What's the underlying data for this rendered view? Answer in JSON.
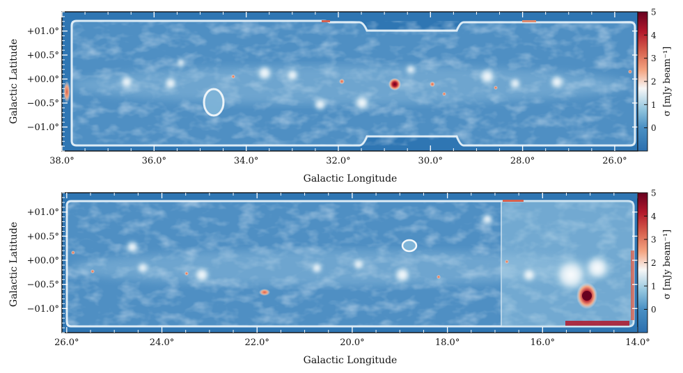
{
  "chart_data": [
    {
      "type": "heatmap",
      "title": "",
      "xlabel": "Galactic Longitude",
      "ylabel": "Galactic Latitude",
      "xlim": [
        38.0,
        25.5
      ],
      "ylim": [
        -1.5,
        1.4
      ],
      "x_ticks": [
        38.0,
        36.0,
        34.0,
        32.0,
        30.0,
        28.0,
        26.0
      ],
      "x_tick_labels": [
        "38.0°",
        "36.0°",
        "34.0°",
        "32.0°",
        "30.0°",
        "28.0°",
        "26.0°"
      ],
      "y_ticks": [
        1.0,
        0.5,
        0.0,
        -0.5,
        -1.0
      ],
      "y_tick_labels": [
        "+01.0°",
        "+00.5°",
        "+00.0°",
        "−00.5°",
        "−01.0°"
      ],
      "colorbar": {
        "label": "σ [mJy beam⁻¹]",
        "range": [
          -1,
          5
        ],
        "ticks": [
          -1,
          0,
          1,
          2,
          3,
          4,
          5
        ],
        "tick_labels": [
          "",
          "0",
          "1",
          "2",
          "3",
          "4",
          "5"
        ],
        "colormap": "RdBu_r",
        "colors": [
          "#2c6fae",
          "#4a90c4",
          "#92c5de",
          "#f7f7f7",
          "#f4a582",
          "#d6604d",
          "#b2182b",
          "#67001f"
        ]
      },
      "background_level": 0.5,
      "bright_sources": [
        {
          "l": 30.8,
          "b": -0.05,
          "sigma": 4.8
        },
        {
          "l": 34.8,
          "b": -0.45,
          "sigma": 2.3
        },
        {
          "l": 31.8,
          "b": -0.02,
          "sigma": 3.6
        },
        {
          "l": 29.9,
          "b": -0.05,
          "sigma": 3.6
        },
        {
          "l": 34.3,
          "b": 0.15,
          "sigma": 3.0
        },
        {
          "l": 37.95,
          "b": -0.15,
          "sigma": 3.5
        },
        {
          "l": 25.8,
          "b": 0.2,
          "sigma": 3.2
        }
      ]
    },
    {
      "type": "heatmap",
      "title": "",
      "xlabel": "Galactic Longitude",
      "ylabel": "Galactic Latitude",
      "xlim": [
        26.1,
        14.0
      ],
      "ylim": [
        -1.5,
        1.4
      ],
      "x_ticks": [
        26.0,
        24.0,
        22.0,
        20.0,
        18.0,
        16.0,
        14.0
      ],
      "x_tick_labels": [
        "26.0°",
        "24.0°",
        "22.0°",
        "20.0°",
        "18.0°",
        "16.0°",
        "14.0°"
      ],
      "y_ticks": [
        1.0,
        0.5,
        0.0,
        -0.5,
        -1.0
      ],
      "y_tick_labels": [
        "+01.0°",
        "+00.5°",
        "+00.0°",
        "−00.5°",
        "−01.0°"
      ],
      "colorbar": {
        "label": "σ [mJy beam⁻¹]",
        "range": [
          -1,
          5
        ],
        "ticks": [
          -1,
          0,
          1,
          2,
          3,
          4,
          5
        ],
        "tick_labels": [
          "",
          "0",
          "1",
          "2",
          "3",
          "4",
          "5"
        ],
        "colormap": "RdBu_r",
        "colors": [
          "#2c6fae",
          "#4a90c4",
          "#92c5de",
          "#f7f7f7",
          "#f4a582",
          "#d6604d",
          "#b2182b",
          "#67001f"
        ]
      },
      "background_level": 0.5,
      "bright_sources": [
        {
          "l": 15.05,
          "b": -0.7,
          "sigma": 5.0
        },
        {
          "l": 19.0,
          "b": 0.25,
          "sigma": 2.0
        },
        {
          "l": 21.9,
          "b": -0.65,
          "sigma": 3.0
        },
        {
          "l": 25.4,
          "b": -0.2,
          "sigma": 3.0
        },
        {
          "l": 23.4,
          "b": -0.2,
          "sigma": 2.8
        },
        {
          "l": 18.2,
          "b": -0.3,
          "sigma": 2.8
        },
        {
          "l": 16.8,
          "b": 0.0,
          "sigma": 2.5
        },
        {
          "l": 15.1,
          "b": -1.3,
          "sigma": 4.5
        }
      ]
    }
  ]
}
